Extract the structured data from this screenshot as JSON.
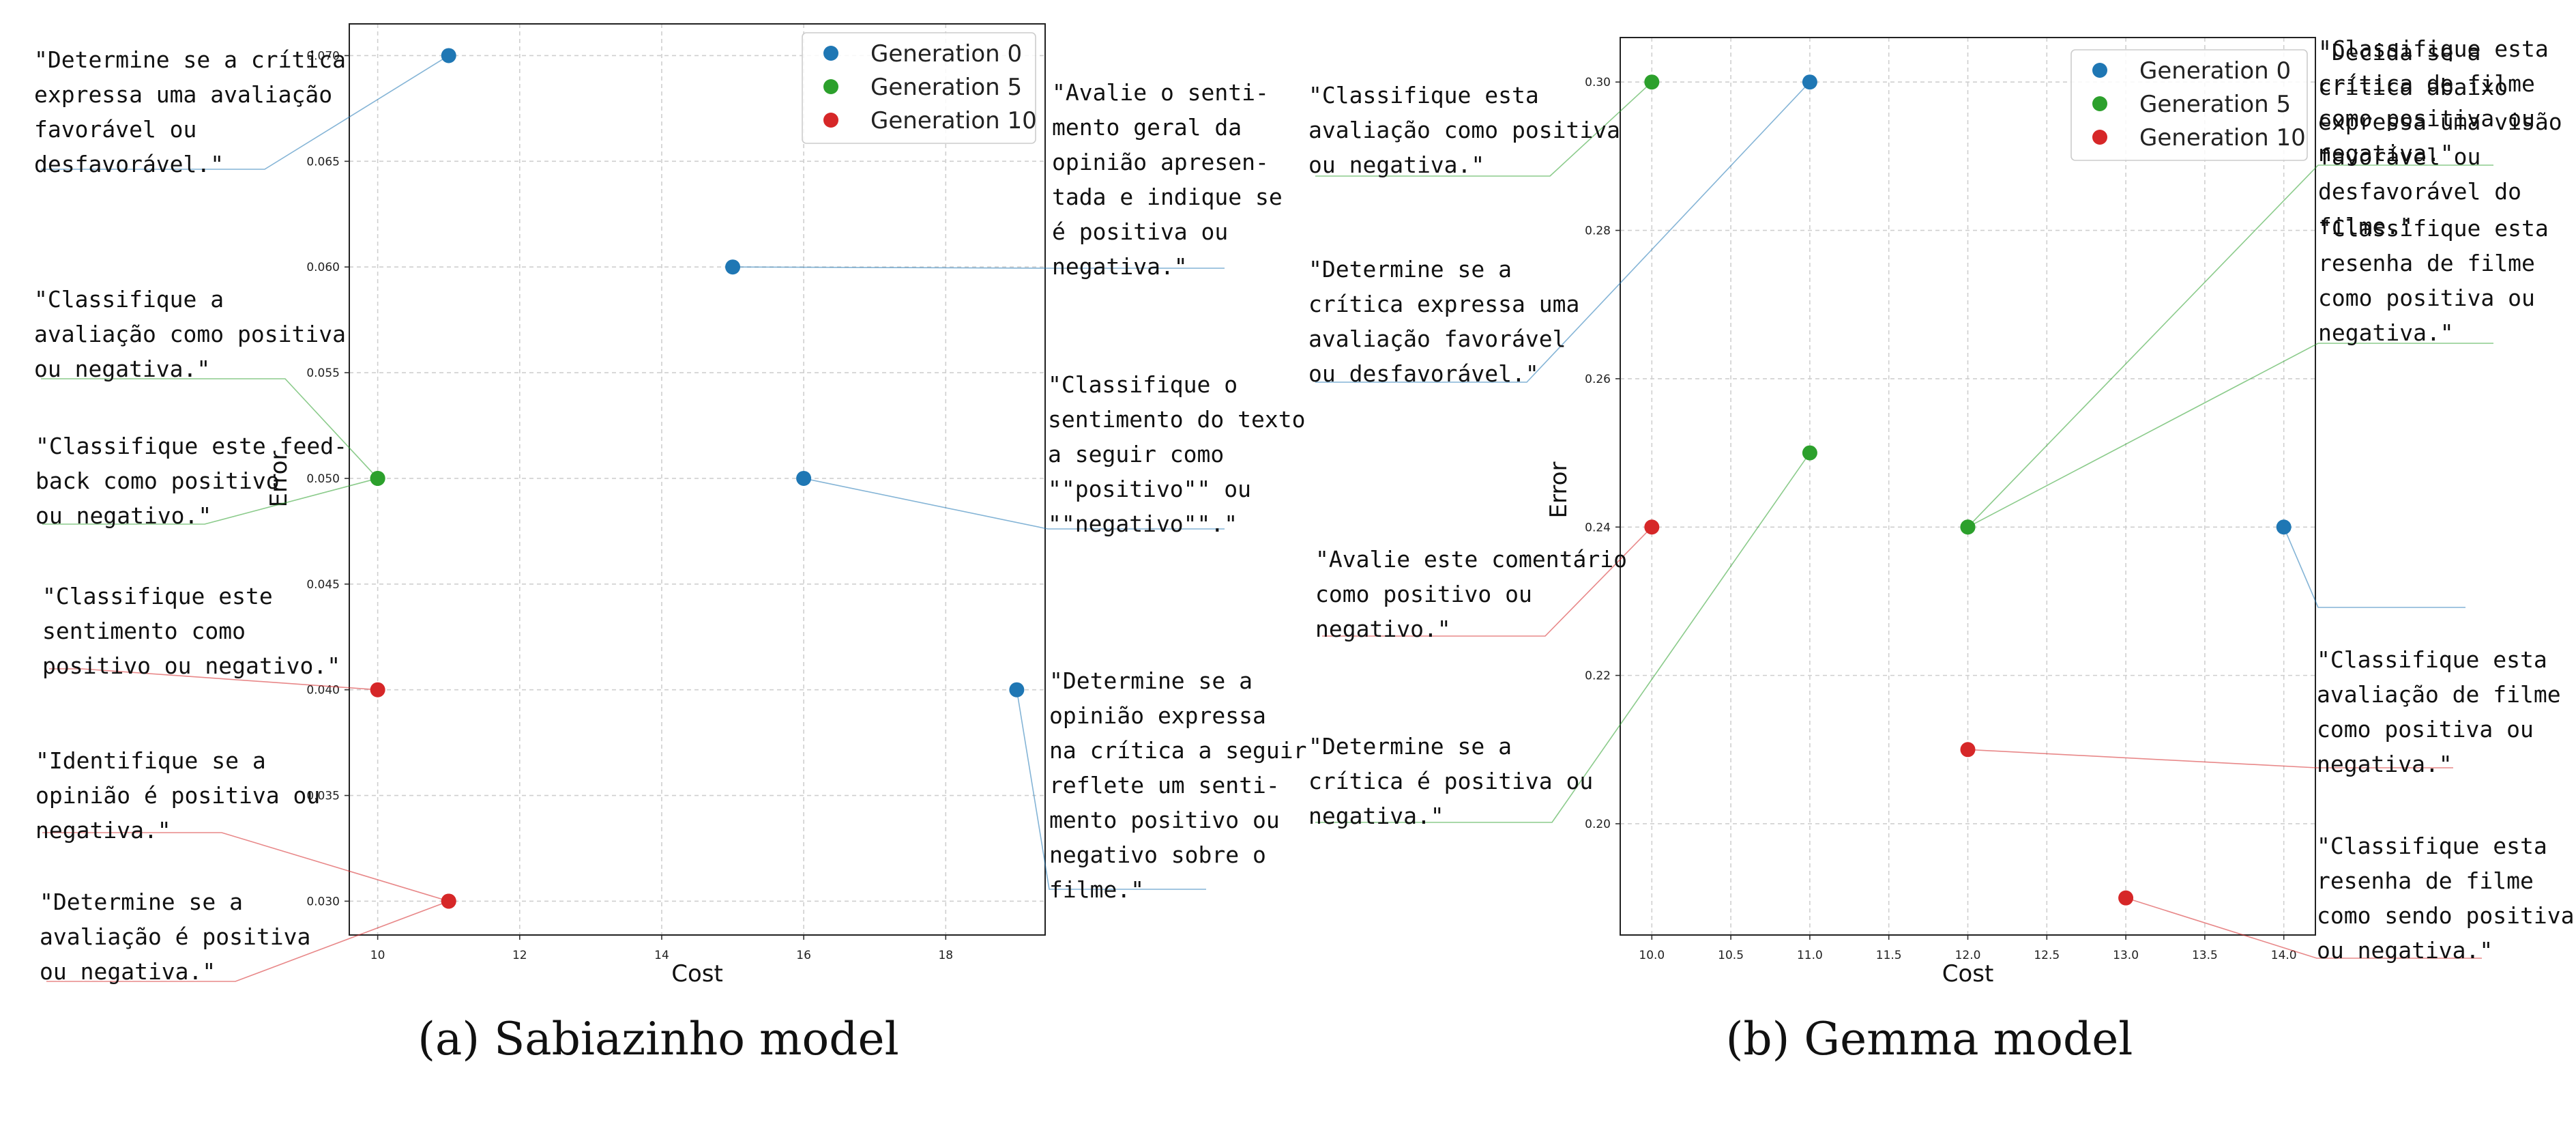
{
  "chart_data": [
    {
      "type": "scatter",
      "caption": "(a) Sabiazinho model",
      "xlabel": "Cost",
      "ylabel": "Error",
      "xlim": [
        9.6,
        19.4
      ],
      "ylim": [
        0.0284,
        0.0715
      ],
      "x_ticks": [
        "10",
        "12",
        "14",
        "16",
        "18"
      ],
      "y_ticks": [
        "0.030",
        "0.035",
        "0.040",
        "0.045",
        "0.050",
        "0.055",
        "0.060",
        "0.065",
        "0.070"
      ],
      "grid": true,
      "legend_position": "top-right",
      "series": [
        {
          "name": "Generation 0",
          "color": "#1f77b4"
        },
        {
          "name": "Generation 5",
          "color": "#2ca02c"
        },
        {
          "name": "Generation 10",
          "color": "#d62728"
        }
      ],
      "points": [
        {
          "series": 0,
          "x": 11,
          "y": 0.07,
          "annotation": [
            "\"Determine se a crítica",
            "expressa uma avaliação",
            "favorável ou",
            "desfavorável.\""
          ]
        },
        {
          "series": 0,
          "x": 15,
          "y": 0.06,
          "annotation": [
            "\"Avalie o senti-",
            "mento geral da",
            "opinião apresen-",
            "tada e indique se",
            "é positiva ou",
            "negativa.\""
          ]
        },
        {
          "series": 0,
          "x": 16,
          "y": 0.05,
          "annotation": [
            "\"Classifique o",
            "sentimento do texto",
            "a seguir como",
            "\"\"positivo\"\" ou",
            "\"\"negativo\"\".\""
          ]
        },
        {
          "series": 0,
          "x": 19,
          "y": 0.04,
          "annotation": [
            "\"Determine se a",
            "opinião expressa",
            "na crítica a seguir",
            "reflete um senti-",
            "mento positivo ou",
            "negativo sobre o",
            "filme.\""
          ]
        },
        {
          "series": 1,
          "x": 10,
          "y": 0.05,
          "annotation": [
            "\"Classifique a",
            "avaliação como positiva",
            "ou negativa.\""
          ]
        },
        {
          "series": 1,
          "x": 10,
          "y": 0.05,
          "annotation": [
            "\"Classifique este feed-",
            "back como positivo",
            "ou negativo.\""
          ]
        },
        {
          "series": 2,
          "x": 10,
          "y": 0.04,
          "annotation": [
            "\"Classifique este",
            "sentimento como",
            "positivo ou negativo.\""
          ]
        },
        {
          "series": 2,
          "x": 11,
          "y": 0.03,
          "annotation": [
            "\"Identifique se a",
            "opinião é positiva ou",
            "negativa.\""
          ]
        },
        {
          "series": 2,
          "x": 11,
          "y": 0.03,
          "annotation": [
            "\"Determine se a",
            "avaliação é positiva",
            "ou negativa.\""
          ]
        }
      ]
    },
    {
      "type": "scatter",
      "caption": "(b) Gemma model",
      "xlabel": "Cost",
      "ylabel": "Error",
      "xlim": [
        9.8,
        14.2
      ],
      "ylim": [
        0.185,
        0.306
      ],
      "x_ticks": [
        "10.0",
        "10.5",
        "11.0",
        "11.5",
        "12.0",
        "12.5",
        "13.0",
        "13.5",
        "14.0"
      ],
      "y_ticks": [
        "0.20",
        "0.22",
        "0.24",
        "0.26",
        "0.28",
        "0.30"
      ],
      "grid": true,
      "legend_position": "top-right",
      "series": [
        {
          "name": "Generation 0",
          "color": "#1f77b4"
        },
        {
          "name": "Generation 5",
          "color": "#2ca02c"
        },
        {
          "name": "Generation 10",
          "color": "#d62728"
        }
      ],
      "points": [
        {
          "series": 0,
          "x": 11,
          "y": 0.3,
          "annotation": [
            "\"Determine se a",
            "crítica expressa uma",
            "avaliação favorável",
            "ou desfavorável.\""
          ]
        },
        {
          "series": 0,
          "x": 14,
          "y": 0.24,
          "annotation": [
            "\"Decida se a",
            "crítica abaixo",
            "expressa uma visão",
            "favorável ou",
            "desfavorável do",
            "filme.\""
          ]
        },
        {
          "series": 1,
          "x": 10,
          "y": 0.3,
          "annotation": [
            "\"Classifique esta",
            "avaliação como positiva",
            "ou negativa.\""
          ]
        },
        {
          "series": 1,
          "x": 11,
          "y": 0.25,
          "annotation": [
            "\"Determine se a",
            "crítica é positiva ou",
            "negativa.\""
          ]
        },
        {
          "series": 1,
          "x": 12,
          "y": 0.24,
          "annotation": [
            "\"Classifique esta",
            "crítica de filme",
            "como positiva ou",
            "negativa.\""
          ]
        },
        {
          "series": 1,
          "x": 12,
          "y": 0.24,
          "annotation": [
            "\"Classifique esta",
            "resenha de filme",
            "como positiva ou",
            "negativa.\""
          ]
        },
        {
          "series": 2,
          "x": 10,
          "y": 0.24,
          "annotation": [
            "\"Avalie este comentário",
            "como positivo ou",
            "negativo.\""
          ]
        },
        {
          "series": 2,
          "x": 12,
          "y": 0.21,
          "annotation": [
            "\"Classifique esta",
            "avaliação de filme",
            "como positiva ou",
            "negativa.\""
          ]
        },
        {
          "series": 2,
          "x": 13,
          "y": 0.19,
          "annotation": [
            "\"Classifique esta",
            "resenha de filme",
            "como sendo positiva",
            "ou negativa.\""
          ]
        }
      ]
    }
  ]
}
